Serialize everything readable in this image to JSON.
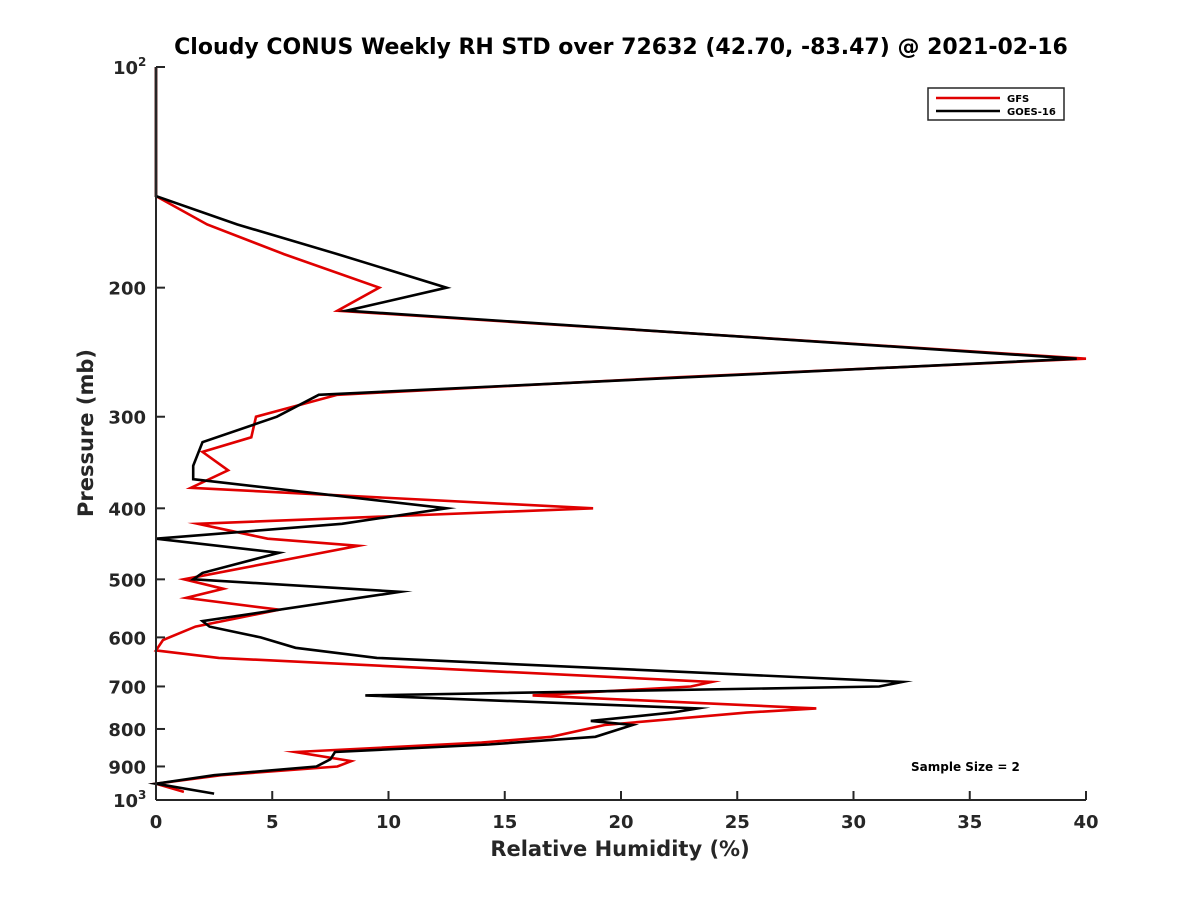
{
  "chart_data": {
    "type": "line",
    "title": "Cloudy CONUS Weekly RH STD over 72632 (42.70, -83.47) @ 2021-02-16",
    "xlabel": "Relative Humidity (%)",
    "ylabel": "Pressure (mb)",
    "xlim": [
      0,
      40
    ],
    "ylim": [
      100,
      1000
    ],
    "y_scale": "log",
    "y_reversed": true,
    "x_ticks": [
      "0",
      "5",
      "10",
      "15",
      "20",
      "25",
      "30",
      "35",
      "40"
    ],
    "y_ticks": [
      {
        "value": 100,
        "label": "10",
        "exp": "2"
      },
      {
        "value": 200,
        "label": "200"
      },
      {
        "value": 300,
        "label": "300"
      },
      {
        "value": 400,
        "label": "400"
      },
      {
        "value": 500,
        "label": "500"
      },
      {
        "value": 600,
        "label": "600"
      },
      {
        "value": 700,
        "label": "700"
      },
      {
        "value": 800,
        "label": "800"
      },
      {
        "value": 900,
        "label": "900"
      },
      {
        "value": 1000,
        "label": "10",
        "exp": "3"
      }
    ],
    "grid": false,
    "legend_position": "top-right",
    "annotation": "Sample Size = 2",
    "series": [
      {
        "name": "GFS",
        "color": "#e00000",
        "points": [
          [
            0,
            100
          ],
          [
            0,
            150
          ],
          [
            2.2,
            164
          ],
          [
            5.5,
            180
          ],
          [
            9.6,
            200
          ],
          [
            7.8,
            215
          ],
          [
            40,
            250
          ],
          [
            22.5,
            265
          ],
          [
            7.8,
            280
          ],
          [
            4.3,
            300
          ],
          [
            4.1,
            320
          ],
          [
            2.0,
            335
          ],
          [
            3.1,
            355
          ],
          [
            1.5,
            375
          ],
          [
            18.8,
            400
          ],
          [
            1.8,
            420
          ],
          [
            4.8,
            440
          ],
          [
            8.7,
            450
          ],
          [
            1.2,
            500
          ],
          [
            2.9,
            515
          ],
          [
            1.3,
            530
          ],
          [
            5.3,
            550
          ],
          [
            1.7,
            580
          ],
          [
            0.3,
            605
          ],
          [
            0.0,
            625
          ],
          [
            2.7,
            640
          ],
          [
            23.9,
            690
          ],
          [
            23.0,
            700
          ],
          [
            16.2,
            720
          ],
          [
            28.4,
            750
          ],
          [
            25.4,
            760
          ],
          [
            19.3,
            790
          ],
          [
            17.0,
            820
          ],
          [
            14.0,
            835
          ],
          [
            6.0,
            860
          ],
          [
            8.4,
            885
          ],
          [
            7.8,
            900
          ],
          [
            2.8,
            925
          ],
          [
            0.0,
            950
          ],
          [
            1.2,
            975
          ]
        ]
      },
      {
        "name": "GOES-16",
        "color": "#000000",
        "points": [
          [
            0,
            100
          ],
          [
            0,
            150
          ],
          [
            3.5,
            164
          ],
          [
            7.8,
            180
          ],
          [
            12.5,
            200
          ],
          [
            8.2,
            215
          ],
          [
            39.6,
            250
          ],
          [
            7.0,
            280
          ],
          [
            5.2,
            300
          ],
          [
            2.0,
            325
          ],
          [
            1.6,
            350
          ],
          [
            1.6,
            365
          ],
          [
            12.5,
            400
          ],
          [
            8.0,
            420
          ],
          [
            0,
            440
          ],
          [
            5.3,
            460
          ],
          [
            2.0,
            490
          ],
          [
            1.6,
            500
          ],
          [
            10.5,
            520
          ],
          [
            2.0,
            570
          ],
          [
            2.3,
            580
          ],
          [
            4.5,
            600
          ],
          [
            6.0,
            620
          ],
          [
            9.5,
            640
          ],
          [
            32.1,
            690
          ],
          [
            31.1,
            700
          ],
          [
            9.0,
            720
          ],
          [
            23.3,
            750
          ],
          [
            22.2,
            760
          ],
          [
            18.7,
            780
          ],
          [
            20.5,
            790
          ],
          [
            18.9,
            820
          ],
          [
            14.3,
            840
          ],
          [
            7.7,
            860
          ],
          [
            7.5,
            880
          ],
          [
            6.9,
            900
          ],
          [
            2.5,
            925
          ],
          [
            0,
            950
          ],
          [
            2.5,
            980
          ]
        ]
      }
    ]
  }
}
